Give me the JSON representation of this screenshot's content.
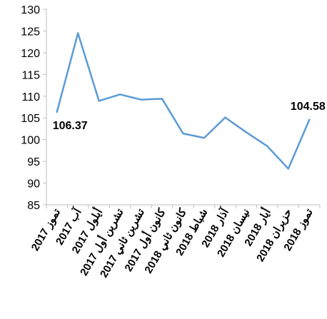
{
  "chart_data": {
    "type": "line",
    "categories": [
      "تموز 2017",
      "آب 2017",
      "أيلول 2017",
      "تشرين أول 2017",
      "تشرين ثاني 2017",
      "كانون أول 2017",
      "كانون ثاني 2018",
      "شباط 2018",
      "آذار 2018",
      "نيسان 2018",
      "أيار 2018",
      "حزيران 2018",
      "تموز 2018"
    ],
    "series": [
      {
        "values": [
          106.37,
          124.5,
          108.9,
          110.4,
          109.2,
          109.4,
          101.4,
          100.4,
          105.1,
          101.7,
          98.5,
          93.3,
          104.58
        ]
      }
    ],
    "ylim": [
      85,
      130
    ],
    "yticks": [
      85,
      90,
      95,
      100,
      105,
      110,
      115,
      120,
      125,
      130
    ],
    "data_labels": [
      {
        "index": 0,
        "text": "106.37"
      },
      {
        "index": 12,
        "text": "104.58"
      }
    ],
    "line_color": "#5B9BD5",
    "grid": false,
    "legend": "none"
  }
}
